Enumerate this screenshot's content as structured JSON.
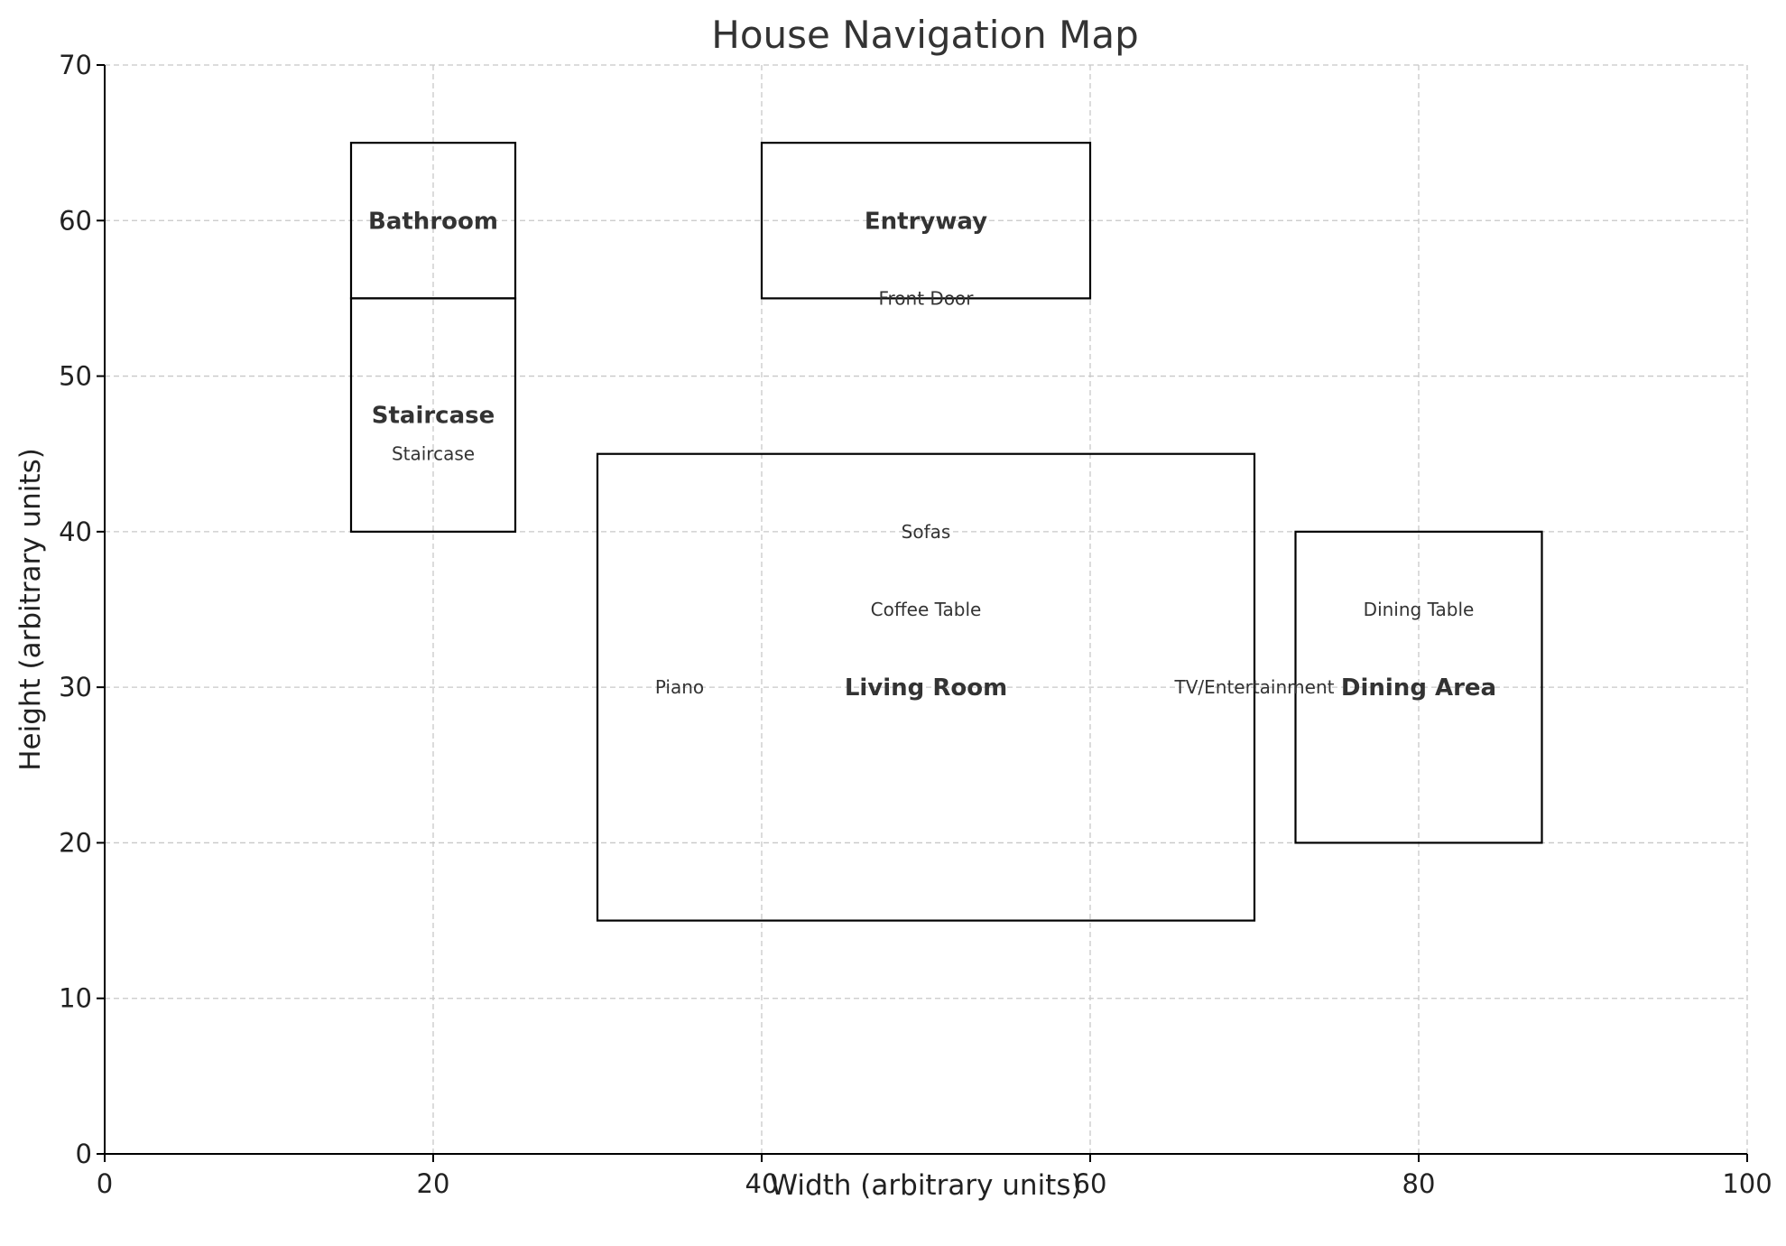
{
  "chart_data": {
    "type": "diagram",
    "title": "House Navigation Map",
    "xlabel": "Width (arbitrary units)",
    "ylabel": "Height (arbitrary units)",
    "xlim": [
      0,
      100
    ],
    "ylim": [
      0,
      70
    ],
    "xticks": [
      0,
      20,
      40,
      60,
      80,
      100
    ],
    "yticks": [
      0,
      10,
      20,
      30,
      40,
      50,
      60,
      70
    ],
    "grid": true,
    "rooms": [
      {
        "name": "Bathroom",
        "x": 15,
        "y": 55,
        "width": 10,
        "height": 10
      },
      {
        "name": "Staircase",
        "x": 15,
        "y": 40,
        "width": 10,
        "height": 15
      },
      {
        "name": "Entryway",
        "x": 40,
        "y": 55,
        "width": 20,
        "height": 10
      },
      {
        "name": "Living Room",
        "x": 30,
        "y": 15,
        "width": 40,
        "height": 30
      },
      {
        "name": "Dining Area",
        "x": 72.5,
        "y": 20,
        "width": 15,
        "height": 20
      }
    ],
    "items": [
      {
        "name": "Staircase",
        "x": 20,
        "y": 45
      },
      {
        "name": "Front Door",
        "x": 50,
        "y": 55
      },
      {
        "name": "Sofas",
        "x": 50,
        "y": 40
      },
      {
        "name": "Coffee Table",
        "x": 50,
        "y": 35
      },
      {
        "name": "Piano",
        "x": 35,
        "y": 30
      },
      {
        "name": "TV/Entertainment",
        "x": 70,
        "y": 30
      },
      {
        "name": "Dining Table",
        "x": 80,
        "y": 35
      }
    ]
  }
}
